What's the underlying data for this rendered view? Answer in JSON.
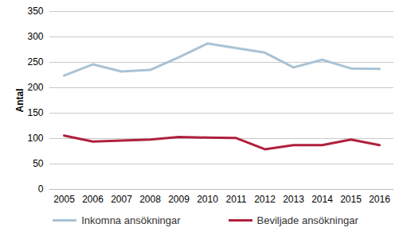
{
  "chart_data": {
    "type": "line",
    "y_label": "Antal",
    "categories": [
      "2005",
      "2006",
      "2007",
      "2008",
      "2009",
      "2010",
      "2011",
      "2012",
      "2013",
      "2014",
      "2015",
      "2016"
    ],
    "series": [
      {
        "name": "Inkomna ansökningar",
        "color": "#a9c3d5",
        "values": [
          224,
          246,
          232,
          235,
          260,
          287,
          278,
          269,
          240,
          255,
          238,
          237
        ]
      },
      {
        "name": "Beviljade ansökningar",
        "color": "#b0203c",
        "values": [
          106,
          94,
          96,
          98,
          103,
          102,
          101,
          79,
          87,
          87,
          98,
          87
        ]
      }
    ],
    "ylim": [
      0,
      350
    ],
    "yticks": [
      0,
      50,
      100,
      150,
      200,
      250,
      300,
      350
    ],
    "grid": true,
    "legend": "bottom"
  }
}
